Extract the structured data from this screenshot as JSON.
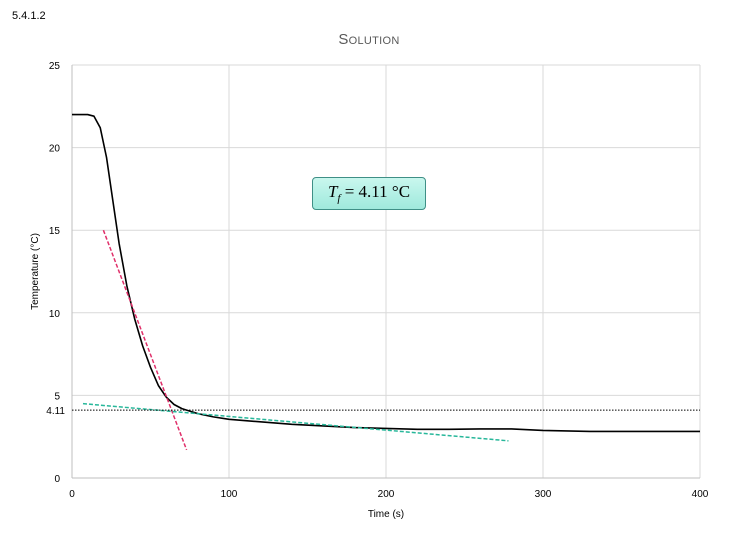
{
  "section_label": "5.4.1.2",
  "chart_data": {
    "type": "line",
    "title": "Solution",
    "xlabel": "Time (s)",
    "ylabel": "Temperature (°C)",
    "xlim": [
      0,
      400
    ],
    "ylim": [
      0,
      25
    ],
    "x_ticks": [
      "0",
      "100",
      "200",
      "300",
      "400"
    ],
    "y_ticks": [
      "0",
      "5",
      "10",
      "15",
      "20",
      "25"
    ],
    "grid": "vertical and horizontal",
    "series": [
      {
        "style": "solid",
        "color": "#000000",
        "x": [
          0,
          10,
          14,
          18,
          22,
          26,
          30,
          35,
          40,
          45,
          50,
          55,
          60,
          65,
          70,
          75,
          80,
          90,
          100,
          120,
          140,
          160,
          180,
          200,
          220,
          240,
          260,
          280,
          300,
          330,
          360,
          400
        ],
        "y": [
          22.0,
          22.0,
          21.9,
          21.2,
          19.4,
          16.8,
          14.2,
          11.6,
          9.6,
          8.0,
          6.7,
          5.6,
          4.9,
          4.45,
          4.2,
          4.05,
          3.9,
          3.7,
          3.55,
          3.4,
          3.25,
          3.15,
          3.05,
          3.0,
          2.95,
          2.95,
          2.97,
          2.97,
          2.88,
          2.82,
          2.82,
          2.82
        ]
      },
      {
        "style": "dashed",
        "color": "#e0306a",
        "x": [
          20,
          73
        ],
        "y": [
          15.0,
          1.7
        ]
      },
      {
        "style": "dashed",
        "color": "#27b79a",
        "x": [
          7,
          278
        ],
        "y": [
          4.5,
          2.25
        ]
      },
      {
        "style": "dotted",
        "color": "#000000",
        "x": [
          0,
          400
        ],
        "y": [
          4.11,
          4.11
        ]
      }
    ],
    "annotations": [
      {
        "label": "4.11",
        "y": 4.11
      },
      {
        "label": "T_f = 4.11 °C"
      }
    ]
  }
}
